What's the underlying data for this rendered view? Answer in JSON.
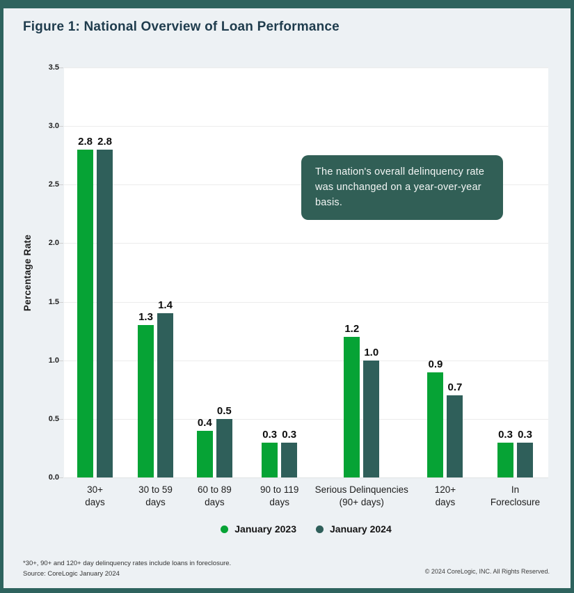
{
  "title": "Figure 1: National Overview of Loan Performance",
  "annotation": {
    "text": "The nation's overall delinquency rate was unchanged on a year-over-year basis."
  },
  "footnotes": {
    "line1": "*30+, 90+ and 120+ day delinquency rates include loans in foreclosure.",
    "line2": "Source: CoreLogic January 2024",
    "copyright": "© 2024 CoreLogic, INC. All Rights Reserved."
  },
  "chart_data": {
    "type": "bar",
    "title": "Figure 1: National Overview of Loan Performance",
    "ylabel": "Percentage Rate",
    "xlabel": "",
    "ylim": [
      0,
      3.5
    ],
    "ytick_step": 0.5,
    "yticks": [
      3.5,
      3.0,
      2.5,
      2.0,
      1.5,
      1.0,
      0.5,
      0.0
    ],
    "grid": true,
    "legend_position": "bottom",
    "categories": [
      {
        "line1": "30+",
        "line2": "days"
      },
      {
        "line1": "30 to 59",
        "line2": "days"
      },
      {
        "line1": "60 to 89",
        "line2": "days"
      },
      {
        "line1": "90 to 119",
        "line2": "days"
      },
      {
        "line1": "Serious Delinquencies",
        "line2": "(90+ days)"
      },
      {
        "line1": "120+",
        "line2": "days"
      },
      {
        "line1": "In",
        "line2": "Foreclosure"
      }
    ],
    "series": [
      {
        "name": "January 2023",
        "color": "#06a335",
        "values": [
          2.8,
          1.3,
          0.4,
          0.3,
          1.2,
          0.9,
          0.3
        ]
      },
      {
        "name": "January 2024",
        "color": "#2f5f5a",
        "values": [
          2.8,
          1.4,
          0.5,
          0.3,
          1.0,
          0.7,
          0.3
        ]
      }
    ]
  },
  "colors": {
    "frame": "#2e635e",
    "page_bg": "#edf1f4",
    "plot_bg": "#ffffff",
    "annotation_bg": "#315f56",
    "title_text": "#1f3c4d",
    "gridline": "#ececec"
  }
}
